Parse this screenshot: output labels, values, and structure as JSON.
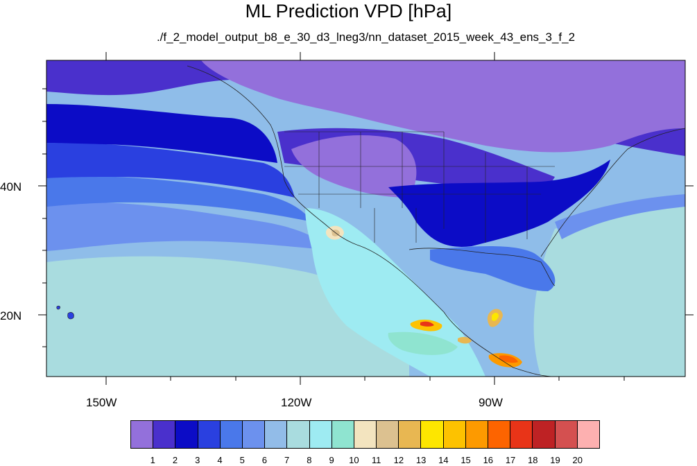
{
  "title": "ML Prediction VPD [hPa]",
  "subtitle": "./f_2_model_output_b8_e_30_d3_lneg3/nn_dataset_2015_week_43_ens_3_f_2",
  "axes": {
    "longitude_labels": [
      "150W",
      "120W",
      "90W"
    ],
    "latitude_labels": [
      "40N",
      "20N"
    ]
  },
  "colorbar": {
    "tick_labels": [
      "1",
      "2",
      "3",
      "4",
      "5",
      "6",
      "7",
      "8",
      "9",
      "10",
      "11",
      "12",
      "13",
      "14",
      "15",
      "16",
      "17",
      "18",
      "19",
      "20"
    ],
    "colors": [
      "#9370db",
      "#4a30cc",
      "#0c0cc6",
      "#2a40e0",
      "#4a78ea",
      "#6c91ee",
      "#92bce8",
      "#a9dcdf",
      "#9eebf2",
      "#8fe4d0",
      "#f3e4bf",
      "#dcc190",
      "#e8b752",
      "#fde600",
      "#fdc200",
      "#fd9a00",
      "#fd6400",
      "#e83418",
      "#be2224",
      "#d45050",
      "#fdb0b0"
    ]
  }
}
